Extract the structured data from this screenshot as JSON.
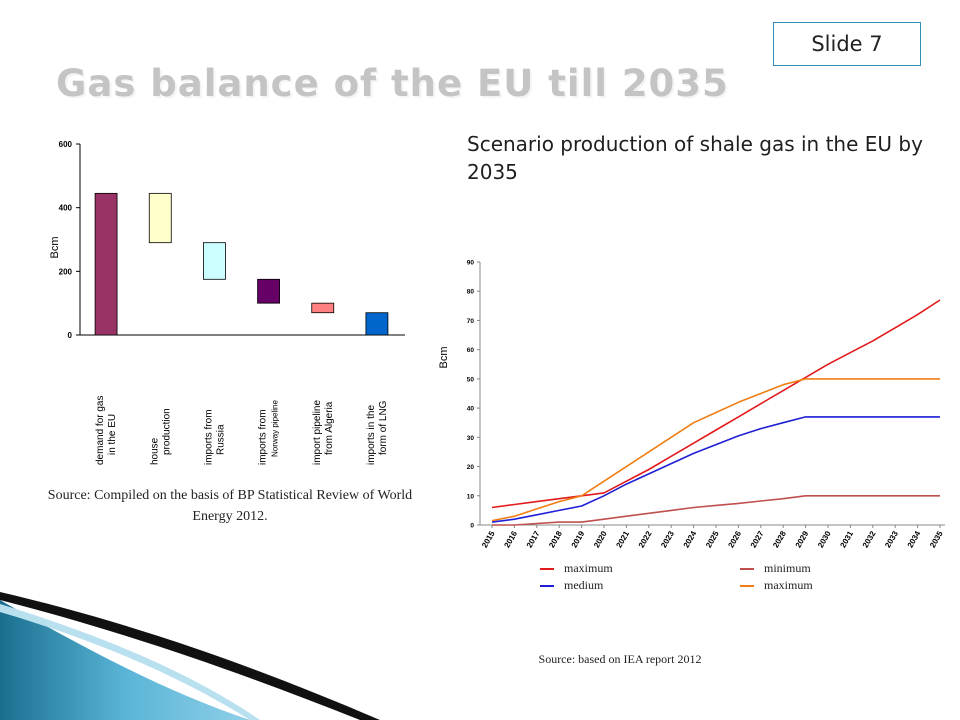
{
  "slide_label": "Slide 7",
  "title": "Gas balance of the EU till 2035",
  "scenario_title": "Scenario production of shale gas in the EU by 2035",
  "left_source": "Source: Compiled on the basis of BP Statistical Review of World Energy 2012.",
  "right_source": "Source: based on IEA report 2012",
  "chart_data": [
    {
      "type": "bar",
      "subtype": "waterfall",
      "ylabel": "Bcm",
      "ylim": [
        0,
        600
      ],
      "yticks": [
        0,
        200,
        400,
        600
      ],
      "categories": [
        {
          "line1": "demand for gas",
          "line2": "in the EU"
        },
        {
          "line1": "house",
          "line2": "production"
        },
        {
          "line1": "imports from",
          "line2": "Russia"
        },
        {
          "line1": "imports from",
          "line2": "Norway pipeline"
        },
        {
          "line1": "import pipeline",
          "line2": "from Algeria"
        },
        {
          "line1": "imports in the",
          "line2": "form of LNG"
        }
      ],
      "bars": [
        {
          "low": 0,
          "high": 445,
          "color": "#993366"
        },
        {
          "low": 290,
          "high": 445,
          "color": "#ffffcc"
        },
        {
          "low": 175,
          "high": 290,
          "color": "#ccffff"
        },
        {
          "low": 100,
          "high": 175,
          "color": "#660066"
        },
        {
          "low": 70,
          "high": 100,
          "color": "#ff8080"
        },
        {
          "low": 0,
          "high": 70,
          "color": "#0066cc"
        }
      ]
    },
    {
      "type": "line",
      "ylabel": "Bcm",
      "ylim": [
        0,
        90
      ],
      "yticks": [
        0,
        10,
        20,
        30,
        40,
        50,
        60,
        70,
        80,
        90
      ],
      "x": [
        "2015",
        "2016",
        "2017",
        "2018",
        "2019",
        "2020",
        "2021",
        "2022",
        "2023",
        "2024",
        "2025",
        "2026",
        "2027",
        "2028",
        "2029",
        "2030",
        "2031",
        "2032",
        "2033",
        "2034",
        "2035"
      ],
      "series": [
        {
          "name": "maximum",
          "color": "#e31a1c",
          "values": [
            6,
            7,
            8,
            9,
            10,
            11,
            15,
            19,
            23.5,
            28,
            32.5,
            37,
            41.5,
            46,
            50.5,
            55,
            59,
            63,
            67.5,
            72,
            77
          ]
        },
        {
          "name": "minimum",
          "color": "#c0504d",
          "values": [
            0,
            0,
            0.5,
            1,
            1,
            2,
            3,
            4,
            5,
            6,
            6.7,
            7.4,
            8.2,
            9,
            10,
            10,
            10,
            10,
            10,
            10,
            10
          ]
        },
        {
          "name": "medium",
          "color": "#1f1fd6",
          "values": [
            1,
            2,
            3.5,
            5,
            6.5,
            10,
            14,
            17.5,
            21,
            24.5,
            27.5,
            30.5,
            33,
            35,
            37,
            37,
            37,
            37,
            37,
            37,
            37
          ]
        },
        {
          "name": "maximum",
          "color": "#f07e14",
          "values": [
            1.5,
            3,
            5.5,
            8,
            10,
            15,
            20,
            25,
            30,
            35,
            38.5,
            42,
            45,
            48,
            50,
            50,
            50,
            50,
            50,
            50,
            50
          ]
        }
      ]
    }
  ]
}
